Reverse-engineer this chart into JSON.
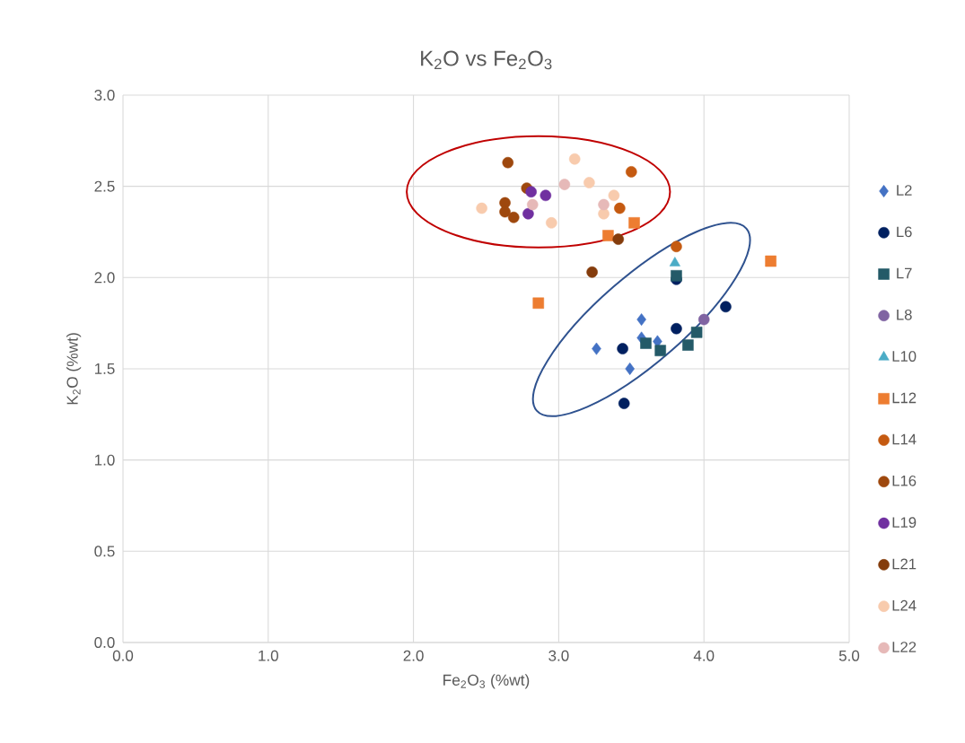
{
  "chart_data": {
    "type": "scatter",
    "title": "K$_{2}$O vs Fe$_{2}$O$_{3}$",
    "xlabel": "Fe$_{2}$O$_{3}$ (%wt)",
    "ylabel": "K$_{2}$O (%wt)",
    "xlim": [
      0,
      5
    ],
    "ylim": [
      0,
      3
    ],
    "xticks": [
      {
        "value": 0,
        "label": "0.0"
      },
      {
        "value": 1,
        "label": "1.0"
      },
      {
        "value": 2,
        "label": "2.0"
      },
      {
        "value": 3,
        "label": "3.0"
      },
      {
        "value": 4,
        "label": "4.0"
      },
      {
        "value": 5,
        "label": "5.0"
      }
    ],
    "yticks": [
      {
        "value": 0,
        "label": "0.0"
      },
      {
        "value": 0.5,
        "label": "0.5"
      },
      {
        "value": 1,
        "label": "1.0"
      },
      {
        "value": 1.5,
        "label": "1.5"
      },
      {
        "value": 2,
        "label": "2.0"
      },
      {
        "value": 2.5,
        "label": "2.5"
      },
      {
        "value": 3,
        "label": "3.0"
      }
    ],
    "grid": true,
    "legend": "right",
    "series": [
      {
        "name": "L2",
        "color": "#4472c4",
        "marker": "diamond",
        "x": [
          3.57,
          3.57,
          3.68,
          3.26,
          3.49
        ],
        "values": [
          1.77,
          1.67,
          1.65,
          1.61,
          1.5
        ]
      },
      {
        "name": "L6",
        "color": "#002060",
        "marker": "circle",
        "x": [
          3.44,
          3.81,
          4.15,
          3.81,
          3.45
        ],
        "values": [
          1.61,
          1.72,
          1.84,
          1.99,
          1.31
        ]
      },
      {
        "name": "L7",
        "color": "#245a68",
        "marker": "square",
        "x": [
          3.6,
          3.7,
          3.89,
          3.95,
          3.81
        ],
        "values": [
          1.64,
          1.6,
          1.63,
          1.7,
          2.01
        ]
      },
      {
        "name": "L8",
        "color": "#8064a2",
        "marker": "circle",
        "x": [
          4.0
        ],
        "values": [
          1.77
        ]
      },
      {
        "name": "L10",
        "color": "#4bacc6",
        "marker": "triangle",
        "x": [
          3.8
        ],
        "values": [
          2.08
        ]
      },
      {
        "name": "L12",
        "color": "#ed7d31",
        "marker": "square",
        "x": [
          2.86,
          4.46,
          3.34,
          3.52
        ],
        "values": [
          1.86,
          2.09,
          2.23,
          2.3
        ]
      },
      {
        "name": "L14",
        "color": "#c55a11",
        "marker": "circle",
        "x": [
          3.81,
          3.5,
          3.42
        ],
        "values": [
          2.17,
          2.58,
          2.38
        ]
      },
      {
        "name": "L16",
        "color": "#9e480e",
        "marker": "circle",
        "x": [
          2.65,
          2.78,
          2.63,
          2.63,
          2.69
        ],
        "values": [
          2.63,
          2.49,
          2.41,
          2.36,
          2.33
        ]
      },
      {
        "name": "L19",
        "color": "#7030a0",
        "marker": "circle",
        "x": [
          2.81,
          2.91,
          2.79
        ],
        "values": [
          2.47,
          2.45,
          2.35
        ]
      },
      {
        "name": "L21",
        "color": "#843c0c",
        "marker": "circle",
        "x": [
          3.41,
          3.23
        ],
        "values": [
          2.21,
          2.03
        ]
      },
      {
        "name": "L24",
        "color": "#f8cbad",
        "marker": "circle",
        "x": [
          2.47,
          2.95,
          3.11,
          3.21,
          3.31,
          3.38
        ],
        "values": [
          2.38,
          2.3,
          2.65,
          2.52,
          2.35,
          2.45
        ]
      },
      {
        "name": "L22",
        "color": "#e6b9b8",
        "marker": "circle",
        "x": [
          2.82,
          3.04,
          3.31
        ],
        "values": [
          2.4,
          2.51,
          2.4
        ]
      }
    ]
  }
}
